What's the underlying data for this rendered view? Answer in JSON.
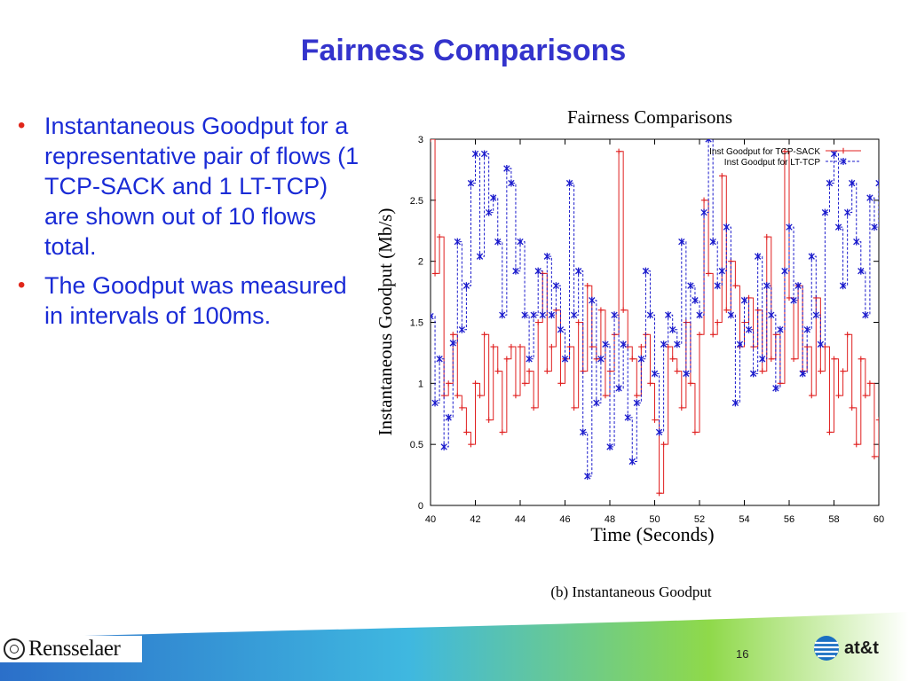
{
  "slide": {
    "title": "Fairness Comparisons",
    "bullets": [
      "Instantaneous Goodput for a representative pair of flows (1 TCP-SACK and 1 LT-TCP) are shown out of 10 flows total.",
      "The Goodput was measured in intervals of 100ms."
    ],
    "page_number": "16"
  },
  "footer": {
    "left_logo": "Rensselaer",
    "right_logo": "at&t",
    "band_colors": [
      "#2b6fc9",
      "#3fb8e0",
      "#8fd94a",
      "#ffffff"
    ]
  },
  "chart_data": {
    "type": "line",
    "title": "Fairness Comparisons",
    "caption": "(b) Instantaneous Goodput",
    "xlabel": "Time (Seconds)",
    "ylabel": "Instantaneous Goodput (Mb/s)",
    "xlim": [
      40,
      60
    ],
    "ylim": [
      0,
      3
    ],
    "xticks": [
      40,
      42,
      44,
      46,
      48,
      50,
      52,
      54,
      56,
      58,
      60
    ],
    "yticks": [
      0,
      0.5,
      1,
      1.5,
      2,
      2.5,
      3
    ],
    "ytick_labels": [
      "0",
      "0.5",
      "1",
      "1.5",
      "2",
      "2.5",
      "3"
    ],
    "grid": false,
    "legend_position": "top-right",
    "series": [
      {
        "name": "Inst Goodput for TCP-SACK",
        "color": "#e02020",
        "marker": "plus",
        "line_style": "solid",
        "x": [
          40.0,
          40.2,
          40.4,
          40.6,
          40.8,
          41.0,
          41.2,
          41.4,
          41.6,
          41.8,
          42.0,
          42.2,
          42.4,
          42.6,
          42.8,
          43.0,
          43.2,
          43.4,
          43.6,
          43.8,
          44.0,
          44.2,
          44.4,
          44.6,
          44.8,
          45.0,
          45.2,
          45.4,
          45.6,
          45.8,
          46.0,
          46.2,
          46.4,
          46.6,
          46.8,
          47.0,
          47.2,
          47.4,
          47.6,
          47.8,
          48.0,
          48.2,
          48.4,
          48.6,
          48.8,
          49.0,
          49.2,
          49.4,
          49.6,
          49.8,
          50.0,
          50.2,
          50.4,
          50.6,
          50.8,
          51.0,
          51.2,
          51.4,
          51.6,
          51.8,
          52.0,
          52.2,
          52.4,
          52.6,
          52.8,
          53.0,
          53.2,
          53.4,
          53.6,
          53.8,
          54.0,
          54.2,
          54.4,
          54.6,
          54.8,
          55.0,
          55.2,
          55.4,
          55.6,
          55.8,
          56.0,
          56.2,
          56.4,
          56.6,
          56.8,
          57.0,
          57.2,
          57.4,
          57.6,
          57.8,
          58.0,
          58.2,
          58.4,
          58.6,
          58.8,
          59.0,
          59.2,
          59.4,
          59.6,
          59.8,
          60.0
        ],
        "values": [
          3.0,
          1.9,
          2.2,
          0.9,
          1.0,
          1.4,
          0.9,
          0.8,
          0.6,
          0.5,
          1.0,
          0.9,
          1.4,
          0.7,
          1.3,
          1.1,
          0.6,
          1.2,
          1.3,
          0.9,
          1.3,
          1.0,
          1.1,
          0.8,
          1.5,
          1.9,
          1.1,
          1.3,
          1.6,
          1.0,
          1.2,
          1.3,
          0.8,
          1.5,
          1.1,
          1.8,
          1.3,
          1.2,
          1.6,
          0.9,
          1.1,
          1.4,
          2.9,
          1.6,
          1.3,
          1.2,
          0.9,
          1.3,
          1.4,
          1.0,
          0.7,
          0.1,
          0.5,
          1.3,
          1.2,
          1.1,
          0.8,
          1.5,
          1.0,
          0.6,
          1.4,
          2.5,
          1.9,
          1.4,
          1.5,
          2.7,
          1.6,
          2.0,
          1.8,
          1.3,
          1.5,
          1.7,
          1.3,
          1.6,
          1.1,
          2.2,
          1.2,
          1.4,
          1.0,
          2.9,
          1.7,
          1.2,
          1.8,
          1.1,
          1.3,
          0.9,
          1.7,
          1.1,
          1.3,
          0.6,
          1.2,
          0.9,
          1.1,
          1.4,
          0.8,
          0.5,
          1.2,
          0.9,
          1.0,
          0.4,
          0.7
        ]
      },
      {
        "name": "Inst Goodput for LT-TCP",
        "color": "#1a1acc",
        "marker": "star",
        "line_style": "dashed",
        "x": [
          40.0,
          40.2,
          40.4,
          40.6,
          40.8,
          41.0,
          41.2,
          41.4,
          41.6,
          41.8,
          42.0,
          42.2,
          42.4,
          42.6,
          42.8,
          43.0,
          43.2,
          43.4,
          43.6,
          43.8,
          44.0,
          44.2,
          44.4,
          44.6,
          44.8,
          45.0,
          45.2,
          45.4,
          45.6,
          45.8,
          46.0,
          46.2,
          46.4,
          46.6,
          46.8,
          47.0,
          47.2,
          47.4,
          47.6,
          47.8,
          48.0,
          48.2,
          48.4,
          48.6,
          48.8,
          49.0,
          49.2,
          49.4,
          49.6,
          49.8,
          50.0,
          50.2,
          50.4,
          50.6,
          50.8,
          51.0,
          51.2,
          51.4,
          51.6,
          51.8,
          52.0,
          52.2,
          52.4,
          52.6,
          52.8,
          53.0,
          53.2,
          53.4,
          53.6,
          53.8,
          54.0,
          54.2,
          54.4,
          54.6,
          54.8,
          55.0,
          55.2,
          55.4,
          55.6,
          55.8,
          56.0,
          56.2,
          56.4,
          56.6,
          56.8,
          57.0,
          57.2,
          57.4,
          57.6,
          57.8,
          58.0,
          58.2,
          58.4,
          58.6,
          58.8,
          59.0,
          59.2,
          59.4,
          59.6,
          59.8,
          60.0
        ],
        "values": [
          1.55,
          0.84,
          1.2,
          0.48,
          0.72,
          1.33,
          2.16,
          1.44,
          1.8,
          2.64,
          2.88,
          2.04,
          2.88,
          2.4,
          2.52,
          2.16,
          1.56,
          2.76,
          2.64,
          1.92,
          2.16,
          1.56,
          1.2,
          1.56,
          1.92,
          1.56,
          2.04,
          1.56,
          1.8,
          1.44,
          1.2,
          2.64,
          1.56,
          1.92,
          0.6,
          0.24,
          1.68,
          0.84,
          1.2,
          1.32,
          0.48,
          1.56,
          0.96,
          1.32,
          0.72,
          0.36,
          0.84,
          1.2,
          1.92,
          1.56,
          1.08,
          0.6,
          1.32,
          1.56,
          1.44,
          1.32,
          2.16,
          1.08,
          1.8,
          1.68,
          1.56,
          2.4,
          3.0,
          2.16,
          1.8,
          1.92,
          2.28,
          1.56,
          0.84,
          1.32,
          1.68,
          1.44,
          1.08,
          2.04,
          1.2,
          1.8,
          1.56,
          0.96,
          1.44,
          1.92,
          2.28,
          1.68,
          1.8,
          1.08,
          1.44,
          2.04,
          1.56,
          1.32,
          2.4,
          2.64,
          2.88,
          2.28,
          1.8,
          2.4,
          2.64,
          2.16,
          1.92,
          1.56,
          2.52,
          2.28,
          2.64
        ]
      }
    ]
  }
}
